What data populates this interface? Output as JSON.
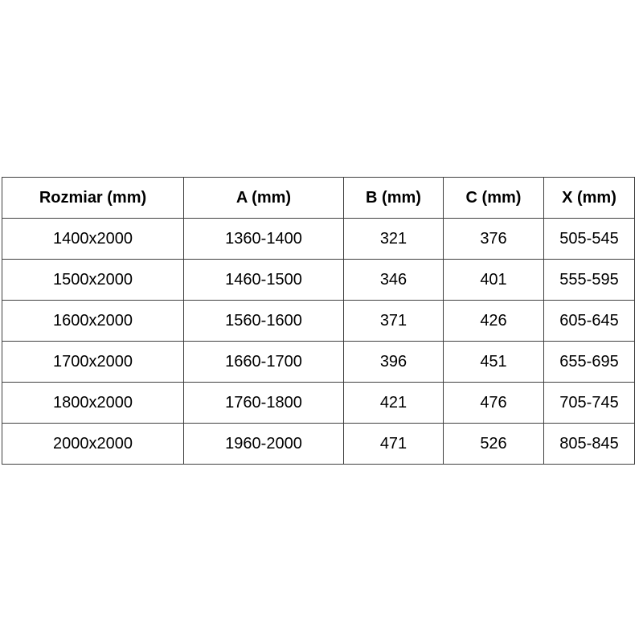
{
  "table": {
    "headers": [
      "Rozmiar (mm)",
      "A (mm)",
      "B (mm)",
      "C (mm)",
      "X (mm)"
    ],
    "rows": [
      [
        "1400x2000",
        "1360-1400",
        "321",
        "376",
        "505-545"
      ],
      [
        "1500x2000",
        "1460-1500",
        "346",
        "401",
        "555-595"
      ],
      [
        "1600x2000",
        "1560-1600",
        "371",
        "426",
        "605-645"
      ],
      [
        "1700x2000",
        "1660-1700",
        "396",
        "451",
        "655-695"
      ],
      [
        "1800x2000",
        "1760-1800",
        "421",
        "476",
        "705-745"
      ],
      [
        "2000x2000",
        "1960-2000",
        "471",
        "526",
        "805-845"
      ]
    ]
  },
  "colors": {
    "border": "#3f3f3f",
    "text": "#000000",
    "background": "#ffffff"
  }
}
